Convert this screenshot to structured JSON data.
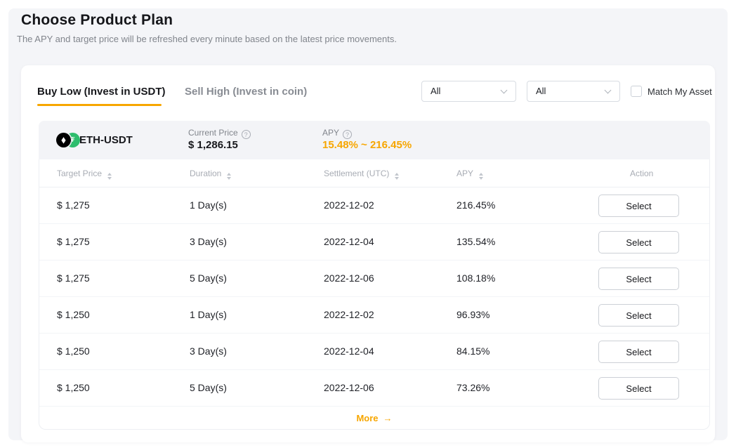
{
  "page": {
    "title": "Choose Product Plan",
    "subtitle": "The APY and target price will be refreshed every minute based on the latest price movements."
  },
  "tabs": [
    {
      "label": "Buy Low (Invest in USDT)",
      "active": true
    },
    {
      "label": "Sell High (Invest in coin)",
      "active": false
    }
  ],
  "filters": {
    "coin_dropdown": {
      "value": "All"
    },
    "duration_dropdown": {
      "value": "All"
    },
    "match_my_asset": {
      "label": "Match My Asset",
      "checked": false
    }
  },
  "product": {
    "pair": "ETH-USDT",
    "current_price_label": "Current Price",
    "current_price": "$ 1,286.15",
    "apy_label": "APY",
    "apy_range": "15.48% ~ 216.45%"
  },
  "table": {
    "columns": [
      {
        "label": "Target Price",
        "sortable": true
      },
      {
        "label": "Duration",
        "sortable": true
      },
      {
        "label": "Settlement (UTC)",
        "sortable": true
      },
      {
        "label": "APY",
        "sortable": true
      },
      {
        "label": "Action",
        "sortable": false
      }
    ],
    "rows": [
      {
        "target_price": "$ 1,275",
        "duration": "1 Day(s)",
        "settlement": "2022-12-02",
        "apy": "216.45%",
        "action": "Select"
      },
      {
        "target_price": "$ 1,275",
        "duration": "3 Day(s)",
        "settlement": "2022-12-04",
        "apy": "135.54%",
        "action": "Select"
      },
      {
        "target_price": "$ 1,275",
        "duration": "5 Day(s)",
        "settlement": "2022-12-06",
        "apy": "108.18%",
        "action": "Select"
      },
      {
        "target_price": "$ 1,250",
        "duration": "1 Day(s)",
        "settlement": "2022-12-02",
        "apy": "96.93%",
        "action": "Select"
      },
      {
        "target_price": "$ 1,250",
        "duration": "3 Day(s)",
        "settlement": "2022-12-04",
        "apy": "84.15%",
        "action": "Select"
      },
      {
        "target_price": "$ 1,250",
        "duration": "5 Day(s)",
        "settlement": "2022-12-06",
        "apy": "73.26%",
        "action": "Select"
      }
    ],
    "more_label": "More"
  },
  "icons": {
    "eth_glyph": "◆",
    "usdt_glyph": "₮",
    "question_glyph": "?",
    "more_arrow": "→"
  },
  "colors": {
    "accent": "#f7a600",
    "eth_black": "#000000",
    "usdt_green": "#2ebd6d",
    "section_bg": "#f4f5f8",
    "band_bg": "#f3f4f7"
  }
}
